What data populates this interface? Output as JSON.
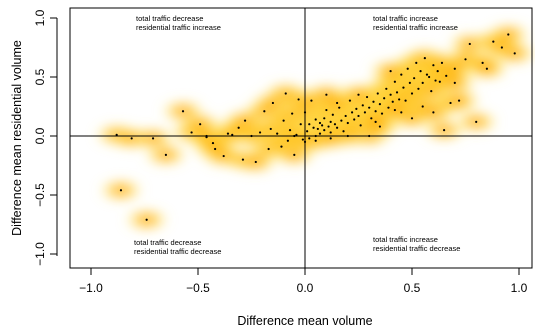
{
  "chart_data": {
    "type": "scatter",
    "subtype": "smoothed-density-scatter",
    "xlabel": "Difference mean volume",
    "ylabel": "Difference mean residential volume",
    "xlim": [
      -1.0,
      1.0
    ],
    "ylim": [
      -1.0,
      1.0
    ],
    "x_ticks": [
      "−1.0",
      "−0.5",
      "0.0",
      "0.5",
      "1.0"
    ],
    "y_ticks": [
      "−1.0",
      "−0.5",
      "0.0",
      "0.5",
      "1.0"
    ],
    "reference_lines": {
      "x": 0,
      "y": 0
    },
    "grid": false,
    "colors": {
      "density_high": "#ff7a00",
      "density_mid": "#ffcc00",
      "density_low": "#fff3a0",
      "points": "#000000"
    },
    "quadrant_labels": [
      {
        "quadrant": "top-left",
        "lines": [
          "total traffic decrease",
          "residential traffic increase"
        ]
      },
      {
        "quadrant": "top-right",
        "lines": [
          "total traffic increase",
          "residential traffic increase"
        ]
      },
      {
        "quadrant": "bottom-left",
        "lines": [
          "total traffic decrease",
          "residential traffic decrease"
        ]
      },
      {
        "quadrant": "bottom-right",
        "lines": [
          "total traffic increase",
          "residential traffic decrease"
        ]
      }
    ],
    "points": [
      [
        -0.86,
        -0.46
      ],
      [
        -0.74,
        -0.71
      ],
      [
        -0.88,
        0.01
      ],
      [
        -0.81,
        -0.02
      ],
      [
        -0.71,
        -0.02
      ],
      [
        -0.65,
        -0.16
      ],
      [
        -0.57,
        0.21
      ],
      [
        -0.53,
        0.03
      ],
      [
        -0.49,
        0.1
      ],
      [
        -0.46,
        -0.01
      ],
      [
        -0.46,
        0.0
      ],
      [
        -0.43,
        -0.06
      ],
      [
        -0.42,
        -0.11
      ],
      [
        -0.38,
        -0.17
      ],
      [
        -0.36,
        0.02
      ],
      [
        -0.34,
        0.01
      ],
      [
        -0.31,
        0.07
      ],
      [
        -0.29,
        -0.2
      ],
      [
        -0.28,
        0.13
      ],
      [
        -0.25,
        0.0
      ],
      [
        -0.23,
        -0.22
      ],
      [
        -0.21,
        0.03
      ],
      [
        -0.19,
        0.21
      ],
      [
        -0.17,
        -0.11
      ],
      [
        -0.16,
        0.06
      ],
      [
        -0.15,
        0.28
      ],
      [
        -0.13,
        0.02
      ],
      [
        -0.11,
        -0.09
      ],
      [
        -0.1,
        0.13
      ],
      [
        -0.09,
        0.36
      ],
      [
        -0.08,
        -0.04
      ],
      [
        -0.07,
        0.05
      ],
      [
        -0.06,
        0.19
      ],
      [
        -0.05,
        -0.16
      ],
      [
        -0.04,
        0.01
      ],
      [
        -0.03,
        0.31
      ],
      [
        -0.02,
        0.1
      ],
      [
        -0.01,
        -0.03
      ],
      [
        0.0,
        0.2
      ],
      [
        0.01,
        0.04
      ],
      [
        0.02,
        0.1
      ],
      [
        0.02,
        -0.02
      ],
      [
        0.03,
        0.3
      ],
      [
        0.04,
        0.07
      ],
      [
        0.05,
        0.14
      ],
      [
        0.05,
        0.0
      ],
      [
        0.06,
        0.06
      ],
      [
        0.07,
        0.11
      ],
      [
        0.07,
        0.02
      ],
      [
        0.08,
        0.09
      ],
      [
        0.09,
        0.15
      ],
      [
        0.09,
        0.05
      ],
      [
        0.1,
        0.22
      ],
      [
        0.11,
        0.08
      ],
      [
        0.12,
        0.12
      ],
      [
        0.12,
        0.03
      ],
      [
        0.13,
        0.18
      ],
      [
        0.14,
        0.1
      ],
      [
        0.15,
        0.07
      ],
      [
        0.16,
        0.24
      ],
      [
        0.17,
        0.13
      ],
      [
        0.18,
        0.04
      ],
      [
        0.19,
        0.17
      ],
      [
        0.2,
        0.11
      ],
      [
        0.21,
        0.3
      ],
      [
        0.22,
        0.2
      ],
      [
        0.23,
        0.14
      ],
      [
        0.24,
        0.23
      ],
      [
        0.25,
        0.17
      ],
      [
        0.26,
        0.09
      ],
      [
        0.27,
        0.26
      ],
      [
        0.28,
        0.2
      ],
      [
        0.29,
        0.33
      ],
      [
        0.3,
        0.24
      ],
      [
        0.31,
        0.15
      ],
      [
        0.32,
        0.29
      ],
      [
        0.33,
        0.21
      ],
      [
        0.34,
        0.36
      ],
      [
        0.35,
        0.27
      ],
      [
        0.36,
        0.19
      ],
      [
        0.37,
        0.32
      ],
      [
        0.38,
        0.4
      ],
      [
        0.39,
        0.24
      ],
      [
        0.4,
        0.35
      ],
      [
        0.41,
        0.29
      ],
      [
        0.42,
        0.46
      ],
      [
        0.43,
        0.37
      ],
      [
        0.44,
        0.31
      ],
      [
        0.45,
        0.52
      ],
      [
        0.46,
        0.41
      ],
      [
        0.47,
        0.3
      ],
      [
        0.48,
        0.57
      ],
      [
        0.49,
        0.45
      ],
      [
        0.5,
        0.36
      ],
      [
        0.51,
        0.49
      ],
      [
        0.52,
        0.62
      ],
      [
        0.53,
        0.4
      ],
      [
        0.54,
        0.55
      ],
      [
        0.55,
        0.45
      ],
      [
        0.56,
        0.66
      ],
      [
        0.57,
        0.52
      ],
      [
        0.58,
        0.5
      ],
      [
        0.59,
        0.38
      ],
      [
        0.6,
        0.6
      ],
      [
        0.61,
        0.47
      ],
      [
        0.62,
        0.55
      ],
      [
        0.63,
        0.46
      ],
      [
        0.64,
        0.62
      ],
      [
        0.66,
        0.51
      ],
      [
        0.68,
        0.28
      ],
      [
        0.7,
        0.57
      ],
      [
        0.72,
        0.3
      ],
      [
        0.75,
        0.65
      ],
      [
        0.77,
        0.78
      ],
      [
        0.8,
        0.12
      ],
      [
        0.83,
        0.62
      ],
      [
        0.85,
        0.57
      ],
      [
        0.88,
        0.8
      ],
      [
        0.92,
        0.75
      ],
      [
        0.95,
        0.86
      ],
      [
        0.98,
        0.7
      ],
      [
        0.4,
        0.55
      ],
      [
        0.3,
        0.0
      ],
      [
        0.35,
        0.08
      ],
      [
        0.45,
        0.2
      ],
      [
        0.5,
        0.15
      ],
      [
        0.55,
        0.25
      ],
      [
        0.6,
        0.2
      ],
      [
        0.25,
        0.35
      ],
      [
        0.15,
        0.28
      ],
      [
        0.1,
        0.35
      ],
      [
        0.2,
        0.0
      ],
      [
        -0.05,
        0.0
      ],
      [
        0.0,
        -0.05
      ],
      [
        0.05,
        -0.04
      ],
      [
        0.12,
        -0.02
      ],
      [
        0.65,
        0.05
      ],
      [
        0.7,
        0.45
      ],
      [
        0.42,
        0.22
      ],
      [
        0.33,
        0.12
      ]
    ]
  }
}
